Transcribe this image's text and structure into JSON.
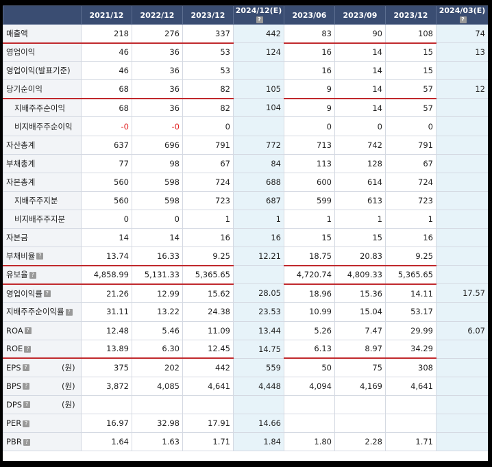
{
  "headers": [
    "",
    "2021/12",
    "2022/12",
    "2023/12",
    "2024/12(E)",
    "2023/06",
    "2023/09",
    "2023/12",
    "2024/03(E)"
  ],
  "help_icon_glyph": "?",
  "colors": {
    "header_bg": "#3a4d72",
    "estimate_bg": "#e7f3f9",
    "label_bg": "#f2f4f7",
    "negative": "#e02020",
    "divider": "#c0282c"
  },
  "rows": [
    {
      "label": "매출액",
      "values": [
        "218",
        "276",
        "337",
        "442",
        "83",
        "90",
        "108",
        "74"
      ],
      "redline": true
    },
    {
      "label": "영업이익",
      "values": [
        "46",
        "36",
        "53",
        "124",
        "16",
        "14",
        "15",
        "13"
      ]
    },
    {
      "label": "영업이익(발표기준)",
      "values": [
        "46",
        "36",
        "53",
        "",
        "16",
        "14",
        "15",
        ""
      ]
    },
    {
      "label": "당기순이익",
      "values": [
        "68",
        "36",
        "82",
        "105",
        "9",
        "14",
        "57",
        "12"
      ],
      "redline": true
    },
    {
      "label": "지배주주순이익",
      "sub": true,
      "values": [
        "68",
        "36",
        "82",
        "104",
        "9",
        "14",
        "57",
        ""
      ]
    },
    {
      "label": "비지배주주순이익",
      "sub": true,
      "values": [
        "-0",
        "-0",
        "0",
        "",
        "0",
        "0",
        "0",
        ""
      ]
    },
    {
      "label": "자산총계",
      "values": [
        "637",
        "696",
        "791",
        "772",
        "713",
        "742",
        "791",
        ""
      ]
    },
    {
      "label": "부채총계",
      "values": [
        "77",
        "98",
        "67",
        "84",
        "113",
        "128",
        "67",
        ""
      ]
    },
    {
      "label": "자본총계",
      "values": [
        "560",
        "598",
        "724",
        "688",
        "600",
        "614",
        "724",
        ""
      ]
    },
    {
      "label": "지배주주지분",
      "sub": true,
      "values": [
        "560",
        "598",
        "723",
        "687",
        "599",
        "613",
        "723",
        ""
      ]
    },
    {
      "label": "비지배주주지분",
      "sub": true,
      "values": [
        "0",
        "0",
        "1",
        "1",
        "1",
        "1",
        "1",
        ""
      ]
    },
    {
      "label": "자본금",
      "values": [
        "14",
        "14",
        "16",
        "16",
        "15",
        "15",
        "16",
        ""
      ]
    },
    {
      "label": "부채비율",
      "help": true,
      "values": [
        "13.74",
        "16.33",
        "9.25",
        "12.21",
        "18.75",
        "20.83",
        "9.25",
        ""
      ],
      "redline": true
    },
    {
      "label": "유보율",
      "help": true,
      "values": [
        "4,858.99",
        "5,131.33",
        "5,365.65",
        "",
        "4,720.74",
        "4,809.33",
        "5,365.65",
        ""
      ],
      "redline": true
    },
    {
      "label": "영업이익률",
      "help": true,
      "values": [
        "21.26",
        "12.99",
        "15.62",
        "28.05",
        "18.96",
        "15.36",
        "14.11",
        "17.57"
      ]
    },
    {
      "label": "지배주주순이익률",
      "help": true,
      "values": [
        "31.11",
        "13.22",
        "24.38",
        "23.53",
        "10.99",
        "15.04",
        "53.17",
        ""
      ]
    },
    {
      "label": "ROA",
      "help": true,
      "values": [
        "12.48",
        "5.46",
        "11.09",
        "13.44",
        "5.26",
        "7.47",
        "29.99",
        "6.07"
      ]
    },
    {
      "label": "ROE",
      "help": true,
      "values": [
        "13.89",
        "6.30",
        "12.45",
        "14.75",
        "6.13",
        "8.97",
        "34.29",
        ""
      ],
      "redline": true
    },
    {
      "label": "EPS",
      "help": true,
      "unit": "(원)",
      "values": [
        "375",
        "202",
        "442",
        "559",
        "50",
        "75",
        "308",
        ""
      ]
    },
    {
      "label": "BPS",
      "help": true,
      "unit": "(원)",
      "values": [
        "3,872",
        "4,085",
        "4,641",
        "4,448",
        "4,094",
        "4,169",
        "4,641",
        ""
      ]
    },
    {
      "label": "DPS",
      "help": true,
      "unit": "(원)",
      "values": [
        "",
        "",
        "",
        "",
        "",
        "",
        "",
        ""
      ]
    },
    {
      "label": "PER",
      "help": true,
      "values": [
        "16.97",
        "32.98",
        "17.91",
        "14.66",
        "",
        "",
        "",
        ""
      ]
    },
    {
      "label": "PBR",
      "help": true,
      "values": [
        "1.64",
        "1.63",
        "1.71",
        "1.84",
        "1.80",
        "2.28",
        "1.71",
        ""
      ]
    }
  ]
}
